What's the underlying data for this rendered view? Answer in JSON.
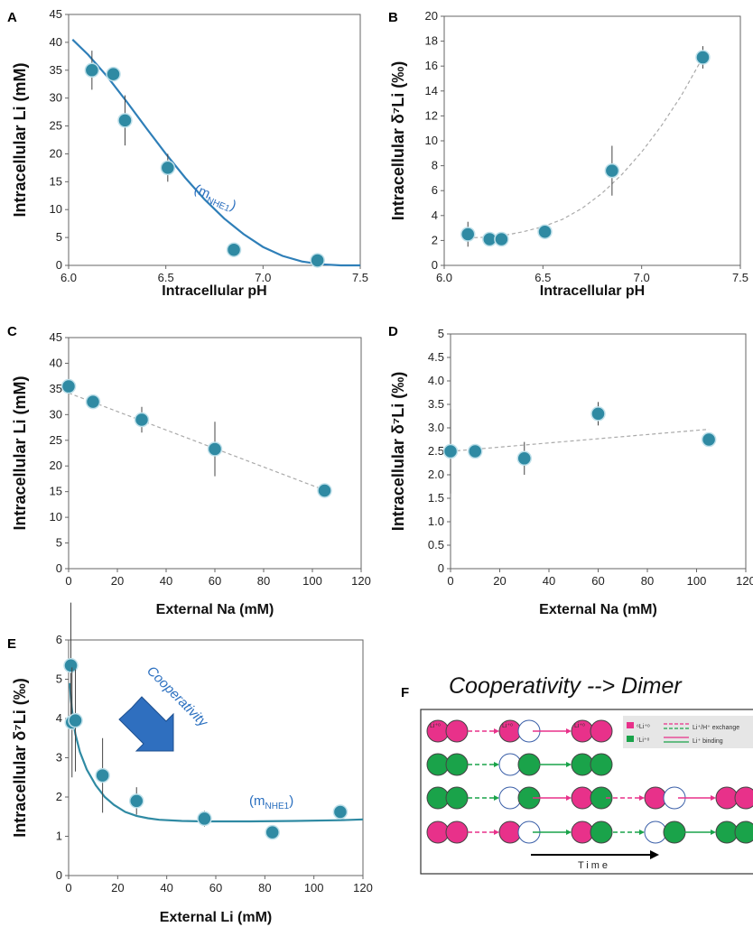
{
  "panels": {
    "A": {
      "label": "A"
    },
    "B": {
      "label": "B"
    },
    "C": {
      "label": "C"
    },
    "D": {
      "label": "D"
    },
    "E": {
      "label": "E"
    },
    "F": {
      "label": "F"
    }
  },
  "colors": {
    "marker": "#2f8aa3",
    "fit": "#2f7fb8",
    "trend": "#aaaaaa",
    "pink": "#e8318a",
    "green": "#1aa34a"
  },
  "chart_data": [
    {
      "id": "A",
      "type": "scatter",
      "xlabel": "Intracellular pH",
      "ylabel": "Intracellular Li (mM)",
      "xlim": [
        6.0,
        7.5
      ],
      "ylim": [
        0,
        45
      ],
      "xticks": [
        "6.0",
        "6.5",
        "7.0",
        "7.5"
      ],
      "yticks": [
        "0",
        "5",
        "10",
        "15",
        "20",
        "25",
        "30",
        "35",
        "40",
        "45"
      ],
      "points": [
        {
          "x": 6.12,
          "y": 35,
          "err": 3.5
        },
        {
          "x": 6.23,
          "y": 34.3,
          "err": 1.2
        },
        {
          "x": 6.29,
          "y": 26,
          "err": 4.5
        },
        {
          "x": 6.51,
          "y": 17.5,
          "err": 2.5
        },
        {
          "x": 6.85,
          "y": 2.8,
          "err": 0.6
        },
        {
          "x": 7.28,
          "y": 0.9,
          "err": 0.4
        }
      ],
      "fit": {
        "style": "solid",
        "x": [
          6.02,
          6.1,
          6.2,
          6.3,
          6.4,
          6.5,
          6.6,
          6.7,
          6.8,
          6.9,
          7.0,
          7.1,
          7.2,
          7.3,
          7.4,
          7.5
        ],
        "y": [
          40.5,
          37.8,
          33.8,
          29.3,
          24.6,
          20.0,
          15.7,
          11.8,
          8.4,
          5.6,
          3.3,
          1.7,
          0.7,
          0.2,
          0.0,
          0.0
        ]
      },
      "annotation": {
        "base": "(m",
        "sub": "NHE1",
        "close": ")"
      }
    },
    {
      "id": "B",
      "type": "scatter",
      "xlabel": "Intracellular pH",
      "ylabel": "Intracellular δ⁷Li (‰)",
      "xlim": [
        6.0,
        7.5
      ],
      "ylim": [
        0,
        20
      ],
      "xticks": [
        "6.0",
        "6.5",
        "7.0",
        "7.5"
      ],
      "yticks": [
        "0",
        "2",
        "4",
        "6",
        "8",
        "10",
        "12",
        "14",
        "16",
        "18",
        "20"
      ],
      "points": [
        {
          "x": 6.12,
          "y": 2.5,
          "err": 1.0
        },
        {
          "x": 6.23,
          "y": 2.1,
          "err": 0.3
        },
        {
          "x": 6.29,
          "y": 2.1,
          "err": 0.3
        },
        {
          "x": 6.51,
          "y": 2.7,
          "err": 0.3
        },
        {
          "x": 6.85,
          "y": 7.6,
          "err": 2.0
        },
        {
          "x": 7.31,
          "y": 16.7,
          "err": 0.9
        }
      ],
      "fit": {
        "style": "dashed",
        "x": [
          6.12,
          6.2,
          6.3,
          6.4,
          6.5,
          6.6,
          6.7,
          6.8,
          6.9,
          7.0,
          7.1,
          7.2,
          7.31
        ],
        "y": [
          2.2,
          2.25,
          2.4,
          2.7,
          3.1,
          3.7,
          4.6,
          5.8,
          7.3,
          9.1,
          11.2,
          13.6,
          16.7
        ]
      }
    },
    {
      "id": "C",
      "type": "scatter",
      "xlabel": "External Na (mM)",
      "ylabel": "Intracellular Li (mM)",
      "xlim": [
        0,
        120
      ],
      "ylim": [
        0,
        45
      ],
      "xticks": [
        "0",
        "20",
        "40",
        "60",
        "80",
        "100",
        "120"
      ],
      "yticks": [
        "0",
        "5",
        "10",
        "15",
        "20",
        "25",
        "30",
        "35",
        "40",
        "45"
      ],
      "points": [
        {
          "x": 0,
          "y": 35.5,
          "err": 1.5
        },
        {
          "x": 10,
          "y": 32.5,
          "err": 1.0
        },
        {
          "x": 30,
          "y": 29,
          "err": 2.5
        },
        {
          "x": 60,
          "y": 23.3,
          "err": 5.3
        },
        {
          "x": 105,
          "y": 15.2,
          "err": 0.8
        }
      ],
      "fit": {
        "style": "dashed",
        "x": [
          0,
          105
        ],
        "y": [
          34.2,
          15.3
        ]
      }
    },
    {
      "id": "D",
      "type": "scatter",
      "xlabel": "External Na (mM)",
      "ylabel": "Intracellular δ⁷Li (‰)",
      "xlim": [
        0,
        120
      ],
      "ylim": [
        0,
        5
      ],
      "xticks": [
        "0",
        "20",
        "40",
        "60",
        "80",
        "100",
        "120"
      ],
      "yticks": [
        "0",
        "0.5",
        "1.0",
        "1.5",
        "2.0",
        "2.5",
        "3.0",
        "3.5",
        "4.0",
        "4.5",
        "5"
      ],
      "points": [
        {
          "x": 0,
          "y": 2.5,
          "err": 0.9
        },
        {
          "x": 10,
          "y": 2.5,
          "err": 0.15
        },
        {
          "x": 30,
          "y": 2.35,
          "err": 0.35
        },
        {
          "x": 60,
          "y": 3.3,
          "err": 0.25
        },
        {
          "x": 105,
          "y": 2.75,
          "err": 0.05
        }
      ],
      "fit": {
        "style": "dashed",
        "x": [
          0,
          105
        ],
        "y": [
          2.5,
          2.97
        ]
      }
    },
    {
      "id": "E",
      "type": "scatter",
      "xlabel": "External Li (mM)",
      "ylabel": "Intracellular δ⁷Li (‰)",
      "xlim": [
        0,
        130
      ],
      "ylim": [
        0,
        6
      ],
      "xticks": [
        "0",
        "20",
        "40",
        "60",
        "80",
        "100",
        "120"
      ],
      "yticks": [
        "0",
        "1",
        "2",
        "3",
        "4",
        "5",
        "6"
      ],
      "points": [
        {
          "x": 1,
          "y": 5.35,
          "err": 1.6
        },
        {
          "x": 1.5,
          "y": 3.9,
          "err": 1.4
        },
        {
          "x": 3,
          "y": 3.95,
          "err": 1.3
        },
        {
          "x": 15,
          "y": 2.55,
          "err": 0.95
        },
        {
          "x": 30,
          "y": 1.9,
          "err": 0.35
        },
        {
          "x": 60,
          "y": 1.45,
          "err": 0.2
        },
        {
          "x": 90,
          "y": 1.1,
          "err": 0.15
        },
        {
          "x": 120,
          "y": 1.62,
          "err": 0.1
        }
      ],
      "fit": {
        "style": "solid",
        "x": [
          0.5,
          1,
          2,
          3,
          5,
          8,
          12,
          16,
          20,
          25,
          30,
          35,
          40,
          50,
          60,
          70,
          80,
          100,
          120,
          130
        ],
        "y": [
          4.9,
          4.5,
          3.95,
          3.6,
          3.15,
          2.7,
          2.3,
          2.0,
          1.8,
          1.62,
          1.52,
          1.46,
          1.42,
          1.39,
          1.38,
          1.38,
          1.38,
          1.39,
          1.41,
          1.43
        ]
      },
      "annotation": {
        "base": "(m",
        "sub": "NHE1",
        "close": ")"
      },
      "arrow_label": "Cooperativity"
    }
  ],
  "panelF": {
    "title": "Cooperativity  --> Dimer",
    "legend": [
      {
        "swatch": "pink",
        "text": "⁶Li⁺ᵒ",
        "line_text": "Li⁺/H⁺ exchange"
      },
      {
        "swatch": "green",
        "text": "⁷Li⁺ᵒ",
        "line_text": "Li⁺ binding"
      }
    ],
    "time_label": "Time",
    "circle_label": "Li⁺ᵒ"
  }
}
